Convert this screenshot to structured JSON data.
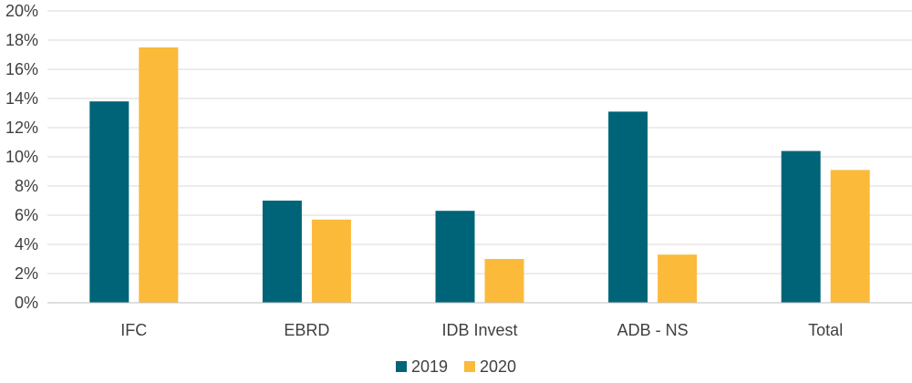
{
  "chart_data": {
    "type": "bar",
    "categories": [
      "IFC",
      "EBRD",
      "IDB Invest",
      "ADB - NS",
      "Total"
    ],
    "series": [
      {
        "name": "2019",
        "color": "#006478",
        "values": [
          13.8,
          7.0,
          6.3,
          13.1,
          10.4
        ]
      },
      {
        "name": "2020",
        "color": "#FBBA3A",
        "values": [
          17.5,
          5.7,
          3.0,
          3.3,
          9.1
        ]
      }
    ],
    "y_ticks": [
      "0%",
      "2%",
      "4%",
      "6%",
      "8%",
      "10%",
      "12%",
      "14%",
      "16%",
      "18%",
      "20%"
    ],
    "ylim": [
      0,
      20
    ],
    "y_unit": "%",
    "grid": true,
    "legend_position": "bottom-center"
  }
}
